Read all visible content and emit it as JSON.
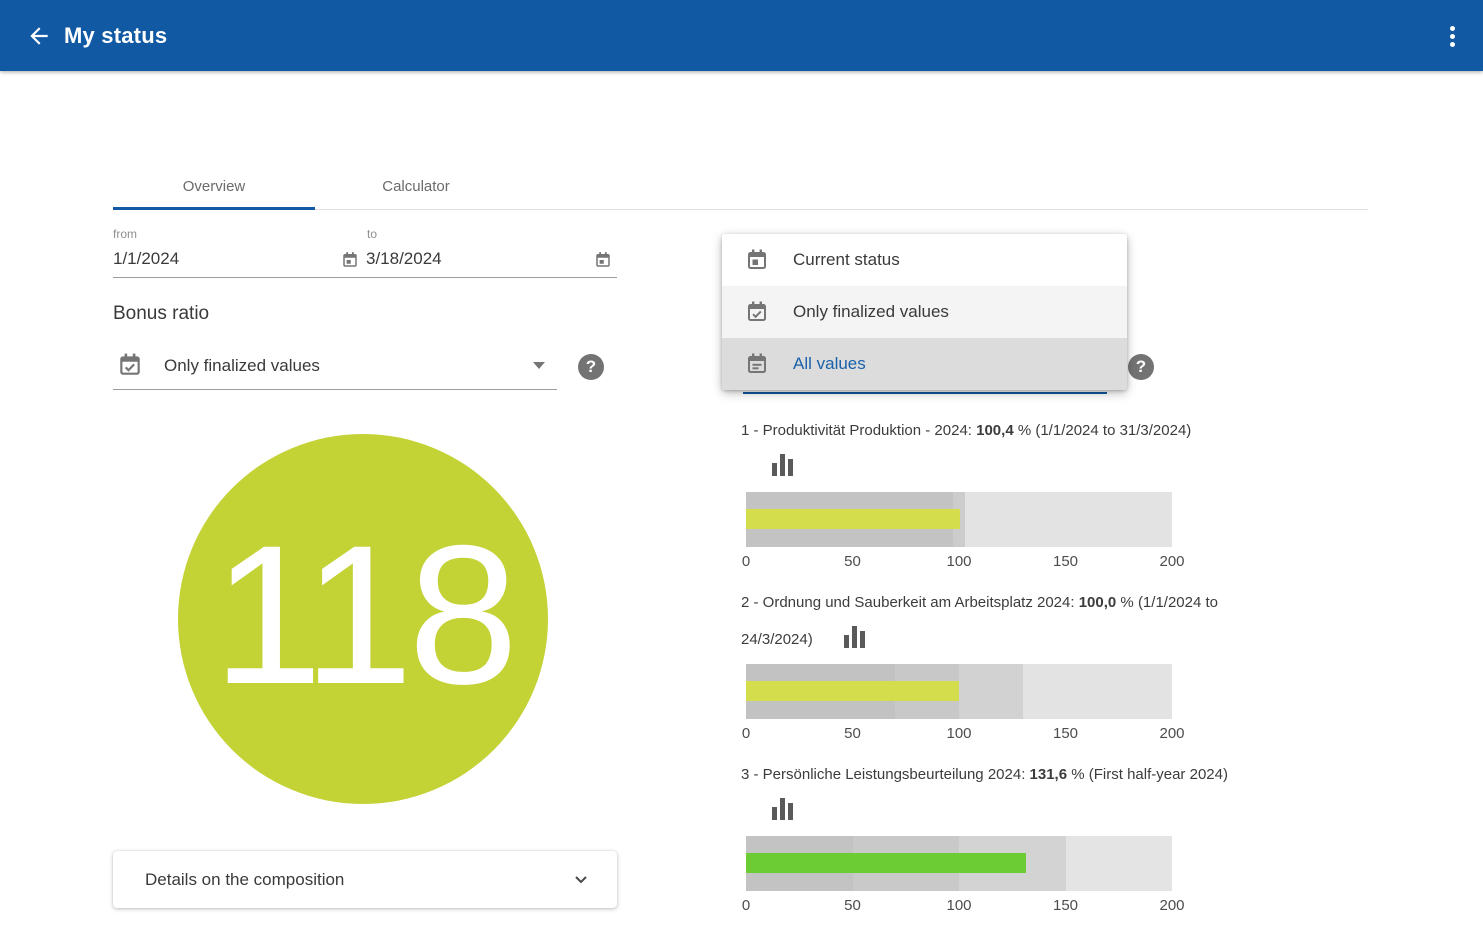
{
  "header": {
    "title": "My status"
  },
  "tabs": [
    {
      "label": "Overview",
      "active": true
    },
    {
      "label": "Calculator",
      "active": false
    }
  ],
  "date_range": {
    "from_label": "from",
    "from_value": "1/1/2024",
    "to_label": "to",
    "to_value": "3/18/2024"
  },
  "bonus_ratio": {
    "heading": "Bonus ratio",
    "selected_value": "Only finalized values"
  },
  "menu": {
    "items": [
      {
        "label": "Current status",
        "icon": "calendar-today-icon",
        "selected": false
      },
      {
        "label": "Only finalized values",
        "icon": "calendar-check-icon",
        "selected": false
      },
      {
        "label": "All values",
        "icon": "calendar-note-icon",
        "selected": true
      }
    ]
  },
  "score_circle": {
    "value": "118",
    "color": "#c3d235"
  },
  "details_card": {
    "label": "Details on the composition"
  },
  "icons": {
    "help_glyph": "?"
  },
  "colors": {
    "accent_blue": "#1159a3",
    "link_blue": "#1a61aa",
    "circle_green": "#c3d235",
    "lime_bar": "#d4dd4b",
    "green_bar": "#6bcc33"
  },
  "chart_data": [
    {
      "type": "bar",
      "label_prefix": "1 - Produktivität Produktion - 2024: ",
      "value_text": "100,4",
      "label_suffix": " % (1/1/2024 to 31/3/2024)",
      "label_line2": "",
      "value": 100.4,
      "xmax": 200,
      "ticks": [
        0,
        50,
        100,
        150,
        200
      ],
      "bar_color": "#d4dd4b",
      "zones": [
        {
          "from": 0,
          "to": 97,
          "color": "#c3c3c3"
        },
        {
          "from": 97,
          "to": 103,
          "color": "#cccccc"
        },
        {
          "from": 103,
          "to": 200,
          "color": "#e3e3e3"
        }
      ]
    },
    {
      "type": "bar",
      "label_prefix": "2 - Ordnung und Sauberkeit am Arbeitsplatz 2024: ",
      "value_text": "100,0",
      "label_suffix": " % (1/1/2024 to",
      "label_line2": "24/3/2024)",
      "value": 100.0,
      "xmax": 200,
      "ticks": [
        0,
        50,
        100,
        150,
        200
      ],
      "bar_color": "#d4dd4b",
      "zones": [
        {
          "from": 0,
          "to": 70,
          "color": "#c2c2c2"
        },
        {
          "from": 70,
          "to": 100,
          "color": "#c8c8c8"
        },
        {
          "from": 100,
          "to": 130,
          "color": "#d2d2d2"
        },
        {
          "from": 130,
          "to": 200,
          "color": "#e3e3e3"
        }
      ]
    },
    {
      "type": "bar",
      "label_prefix": "3 - Persönliche Leistungsbeurteilung 2024: ",
      "value_text": "131,6",
      "label_suffix": " % (First half-year 2024)",
      "label_line2": "",
      "value": 131.6,
      "xmax": 200,
      "ticks": [
        0,
        50,
        100,
        150,
        200
      ],
      "bar_color": "#6bcc33",
      "zones": [
        {
          "from": 0,
          "to": 50,
          "color": "#c3c3c3"
        },
        {
          "from": 50,
          "to": 100,
          "color": "#c9c9c9"
        },
        {
          "from": 100,
          "to": 150,
          "color": "#d3d3d3"
        },
        {
          "from": 150,
          "to": 200,
          "color": "#e4e4e4"
        }
      ]
    }
  ]
}
